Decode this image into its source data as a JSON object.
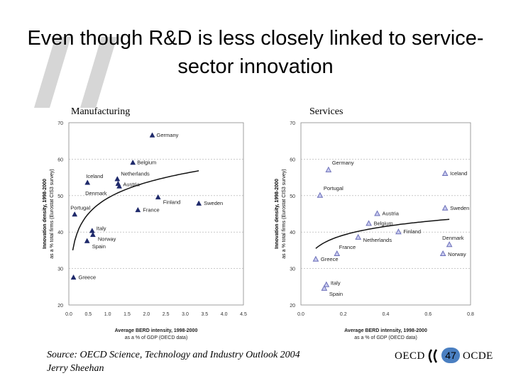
{
  "slide": {
    "title": "Even though R&D is less closely linked to service-sector innovation",
    "source_line1": "Source: OECD Science, Technology and Industry Outlook 2004",
    "source_line2": "Jerry Sheehan",
    "logo_left": "OECD",
    "logo_right": "OCDE",
    "page_number": "47"
  },
  "chart_data": [
    {
      "type": "scatter",
      "panel_label": "Manufacturing",
      "xlabel": "Average BERD intensity, 1998-2000",
      "xlabel_sub": "as a % of GDP (OECD data)",
      "ylabel": "Innovation density, 1998-2000",
      "ylabel_sub": "as a % total firms (Eurostat CIS3 survey)",
      "xlim": [
        0,
        4.5
      ],
      "ylim": [
        20,
        70
      ],
      "xticks": [
        "0.0",
        "0.5",
        "1.0",
        "1.5",
        "2.0",
        "2.5",
        "3.0",
        "3.5",
        "4.0",
        "4.5"
      ],
      "yticks": [
        "20",
        "30",
        "40",
        "50",
        "60",
        "70"
      ],
      "marker": "filled-triangle",
      "marker_color": "#1f2a6b",
      "grid": "horizontal-dotted",
      "trend": {
        "kind": "logarithmic",
        "x_range": [
          0.1,
          3.35
        ],
        "a": 49.3,
        "b": 6.21
      },
      "points": [
        {
          "label": "Germany",
          "x": 2.15,
          "y": 66.5
        },
        {
          "label": "Belgium",
          "x": 1.65,
          "y": 59
        },
        {
          "label": "Netherlands",
          "x": 1.25,
          "y": 54.5
        },
        {
          "label": "Austria",
          "x": 1.27,
          "y": 53.2
        },
        {
          "label": "Denmark",
          "x": 1.3,
          "y": 52.5
        },
        {
          "label": "Iceland",
          "x": 0.48,
          "y": 53.5
        },
        {
          "label": "Portugal",
          "x": 0.15,
          "y": 44.8
        },
        {
          "label": "Italy",
          "x": 0.6,
          "y": 40.3
        },
        {
          "label": "Norway",
          "x": 0.62,
          "y": 39.2
        },
        {
          "label": "Spain",
          "x": 0.47,
          "y": 37.5
        },
        {
          "label": "Greece",
          "x": 0.12,
          "y": 27.5
        },
        {
          "label": "France",
          "x": 1.78,
          "y": 46
        },
        {
          "label": "Finland",
          "x": 2.3,
          "y": 49.5
        },
        {
          "label": "Sweden",
          "x": 3.35,
          "y": 47.8
        }
      ]
    },
    {
      "type": "scatter",
      "panel_label": "Services",
      "xlabel": "Average BERD intensity, 1998-2000",
      "xlabel_sub": "as a % of GDP (OECD data)",
      "ylabel": "Innovation density, 1998-2000",
      "ylabel_sub": "as a % total firms (Eurostat CIS3 survey)",
      "xlim": [
        0,
        0.8
      ],
      "ylim": [
        20,
        70
      ],
      "xticks": [
        "0.0",
        "0.2",
        "0.4",
        "0.6",
        "0.8"
      ],
      "yticks": [
        "20",
        "30",
        "40",
        "50",
        "60",
        "70"
      ],
      "marker": "hollow-triangle",
      "marker_color": "#6b6fb8",
      "grid": "horizontal-dotted",
      "trend": {
        "kind": "logarithmic",
        "x_range": [
          0.07,
          0.7
        ],
        "a": 44.74,
        "b": 3.47
      },
      "points": [
        {
          "label": "Germany",
          "x": 0.13,
          "y": 57
        },
        {
          "label": "Portugal",
          "x": 0.09,
          "y": 50
        },
        {
          "label": "Iceland",
          "x": 0.68,
          "y": 56
        },
        {
          "label": "Sweden",
          "x": 0.68,
          "y": 46.5
        },
        {
          "label": "Austria",
          "x": 0.36,
          "y": 45
        },
        {
          "label": "Belgium",
          "x": 0.32,
          "y": 42.3
        },
        {
          "label": "Finland",
          "x": 0.46,
          "y": 40
        },
        {
          "label": "Netherlands",
          "x": 0.27,
          "y": 38.5
        },
        {
          "label": "Denmark",
          "x": 0.7,
          "y": 36.5
        },
        {
          "label": "Norway",
          "x": 0.67,
          "y": 34
        },
        {
          "label": "France",
          "x": 0.17,
          "y": 34
        },
        {
          "label": "Greece",
          "x": 0.07,
          "y": 32.5
        },
        {
          "label": "Italy",
          "x": 0.12,
          "y": 25.5
        },
        {
          "label": "Spain",
          "x": 0.11,
          "y": 24.5
        }
      ]
    }
  ]
}
